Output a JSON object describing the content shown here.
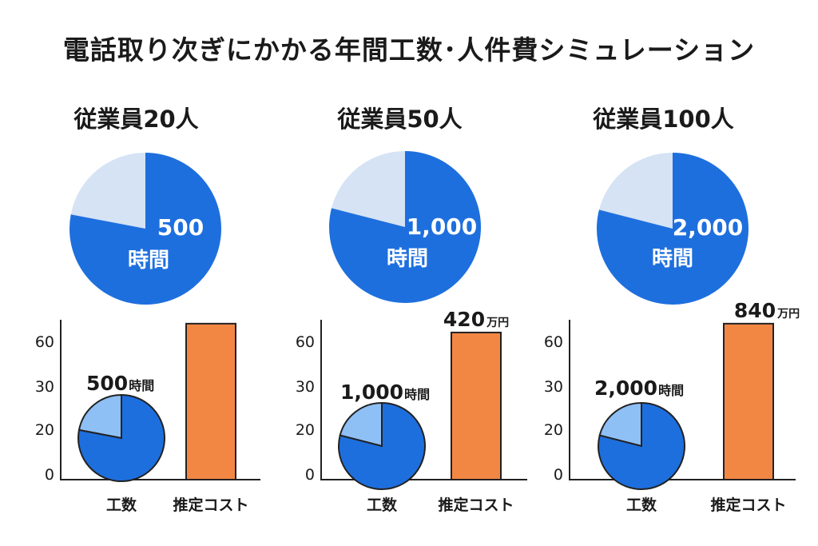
{
  "title": "電話取り次ぎにかかる年間工数･人件費シミュレーション",
  "colors": {
    "pie_main": "#1e6fde",
    "pie_light": "#d5e3f5",
    "mini_light": "#8ec0f6",
    "bar": "#f28744",
    "axis": "#222222"
  },
  "chart_data": [
    {
      "type": "bar",
      "heading": "従業員20人",
      "pie": {
        "value_label": "500",
        "unit_label": "時間",
        "share": 0.78
      },
      "mini_pie": {
        "value_label": "500",
        "unit_label": "時間",
        "share": 0.78
      },
      "categories": [
        "工数",
        "推定コスト"
      ],
      "values": [
        null,
        68
      ],
      "bar_label": {
        "value": "",
        "unit": ""
      },
      "yticks": [
        "60",
        "30",
        "20",
        "0"
      ],
      "ylim": [
        0,
        70
      ]
    },
    {
      "type": "bar",
      "heading": "従業員50人",
      "pie": {
        "value_label": "1,000",
        "unit_label": "時間",
        "share": 0.79
      },
      "mini_pie": {
        "value_label": "1,000",
        "unit_label": "時間",
        "share": 0.79
      },
      "categories": [
        "工数",
        "推定コスト"
      ],
      "values": [
        null,
        64
      ],
      "bar_label": {
        "value": "420",
        "unit": "万円"
      },
      "yticks": [
        "60",
        "30",
        "20",
        "0"
      ],
      "ylim": [
        0,
        70
      ]
    },
    {
      "type": "bar",
      "heading": "従業員100人",
      "pie": {
        "value_label": "2,000",
        "unit_label": "時間",
        "share": 0.79
      },
      "mini_pie": {
        "value_label": "2,000",
        "unit_label": "時間",
        "share": 0.79
      },
      "categories": [
        "工数",
        "推定コスト"
      ],
      "values": [
        null,
        68
      ],
      "bar_label": {
        "value": "840",
        "unit": "万円"
      },
      "yticks": [
        "60",
        "30",
        "20",
        "0"
      ],
      "ylim": [
        0,
        70
      ]
    }
  ]
}
